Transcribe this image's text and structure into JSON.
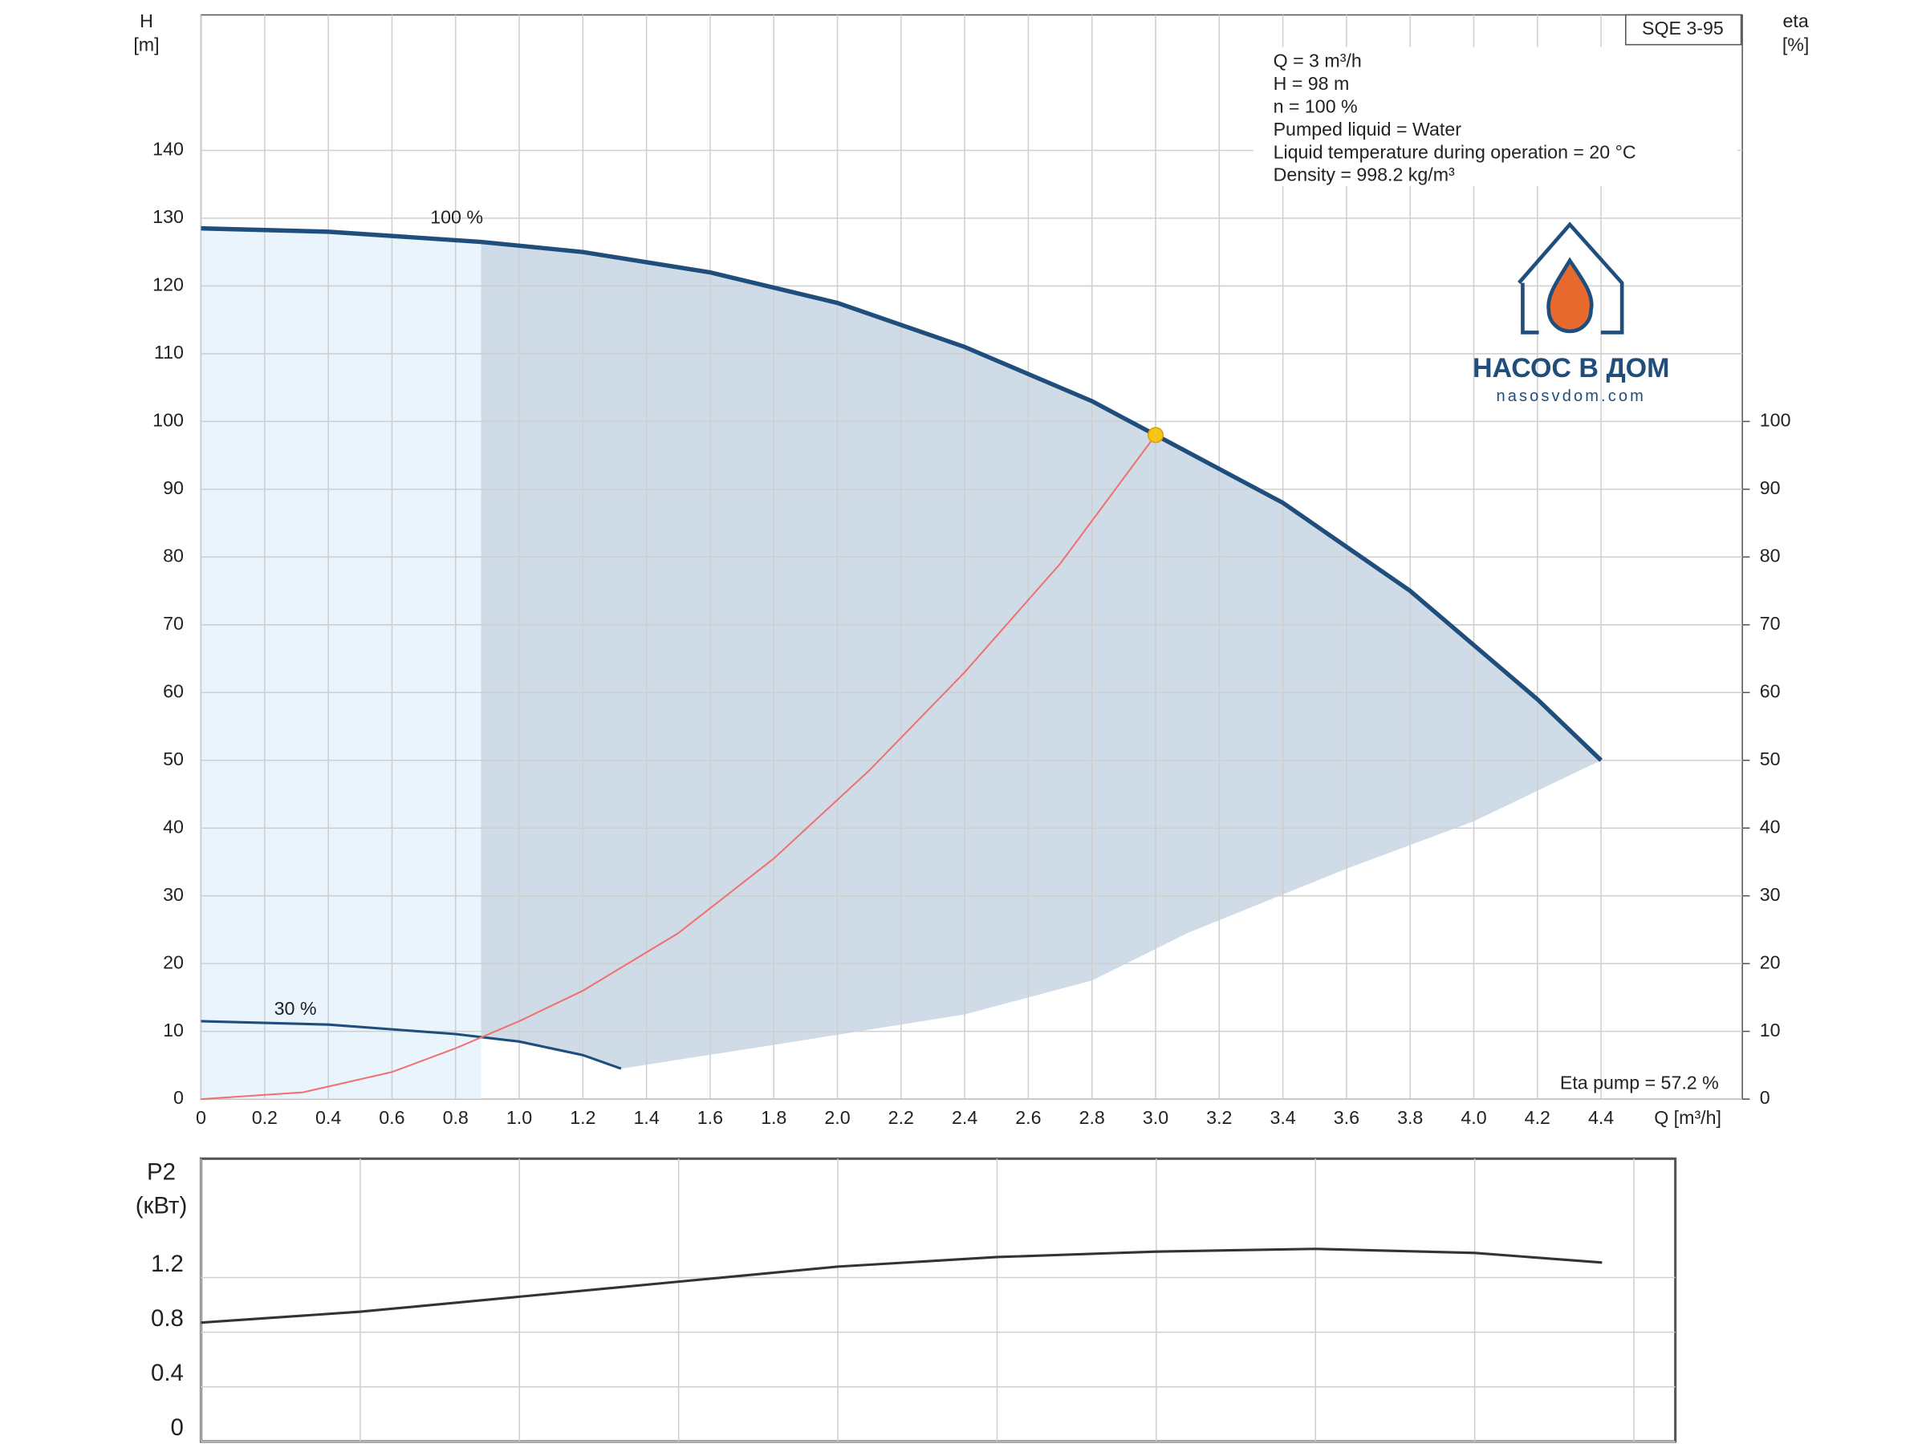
{
  "chart_data": [
    {
      "type": "line",
      "model": "SQE 3-95",
      "info": [
        "Q = 3 m³/h",
        "H = 98 m",
        "n = 100 %",
        "Pumped liquid = Water",
        "Liquid temperature during operation = 20 °C",
        "Density = 998.2 kg/m³"
      ],
      "ylabel": [
        "H",
        "[m]"
      ],
      "y2label": [
        "eta",
        "[%]"
      ],
      "xlabel": "Q [m³/h]",
      "annotation": "Eta pump = 57.2 %",
      "xlim": [
        0,
        4.844
      ],
      "ylim": [
        0,
        160
      ],
      "y2lim": [
        0,
        160
      ],
      "xticks": [
        0,
        0.2,
        0.4,
        0.6,
        0.8,
        {
          "value": 1,
          "label": "1.0"
        },
        1.2,
        1.4,
        1.6,
        1.8,
        {
          "value": 2,
          "label": "2.0"
        },
        2.2,
        2.4,
        2.6,
        2.8,
        {
          "value": 3,
          "label": "3.0"
        },
        3.2,
        3.4,
        3.6,
        3.8,
        {
          "value": 4,
          "label": "4.0"
        },
        4.2,
        4.4
      ],
      "yticks": [
        0,
        10,
        20,
        30,
        40,
        50,
        60,
        70,
        80,
        90,
        100,
        110,
        120,
        130,
        140
      ],
      "y2ticks": [
        0,
        10,
        20,
        30,
        40,
        50,
        60,
        70,
        80,
        90,
        100
      ],
      "grid": true,
      "series": [
        {
          "name": "100 %",
          "color": "#1f4e7c",
          "x": [
            0,
            0.4,
            0.88,
            1.2,
            1.6,
            2.0,
            2.4,
            2.8,
            3.0,
            3.4,
            3.8,
            4.2,
            4.4
          ],
          "values": [
            128.5,
            128,
            126.5,
            125,
            122,
            117.5,
            111,
            103,
            98,
            88,
            75,
            59,
            50
          ]
        },
        {
          "name": "30 %",
          "color": "#1f4e7c",
          "x": [
            0,
            0.4,
            0.8,
            1.0,
            1.2,
            1.32
          ],
          "values": [
            11.5,
            11,
            9.6,
            8.5,
            6.5,
            4.5
          ]
        },
        {
          "color": "#f07070",
          "x": [
            0,
            0.32,
            0.6,
            0.8,
            1.0,
            1.2,
            1.5,
            1.8,
            2.1,
            2.4,
            2.7,
            3.0
          ],
          "values": [
            0,
            1,
            4,
            7.5,
            11.5,
            16,
            24.5,
            35.5,
            48.5,
            63,
            79,
            98
          ]
        }
      ],
      "envelope": {
        "color": "#cfdbe6",
        "x": [
          0.88,
          1.0,
          1.2,
          1.32,
          1.8,
          2.4,
          2.8,
          3.1,
          3.6,
          4.0,
          4.4
        ],
        "values": [
          9.3,
          8.5,
          6.5,
          4.5,
          8,
          12.5,
          17.5,
          24.5,
          34,
          41,
          50
        ]
      },
      "low_region_color": "#eaf4fd",
      "operating_point": {
        "x": 3,
        "y": 98,
        "color": "#f5c518"
      },
      "watermark": {
        "title": "НАСОС В ДОМ",
        "url": "nasosvdom.com"
      }
    },
    {
      "type": "line",
      "ylabel": [
        "P2",
        "(кВт)"
      ],
      "xlim": [
        0,
        4.63
      ],
      "ylim": [
        0,
        2.07
      ],
      "xticks": [
        0,
        0.5,
        1,
        1.5,
        2,
        2.5,
        3,
        3.5,
        4,
        4.5
      ],
      "xtick_labels": false,
      "yticks": [
        0,
        0.4,
        0.8,
        1.2
      ],
      "grid": true,
      "series": [
        {
          "color": "#333333",
          "x": [
            0,
            0.5,
            1,
            1.5,
            2,
            2.5,
            3,
            3.5,
            4,
            4.4
          ],
          "values": [
            0.87,
            0.95,
            1.06,
            1.17,
            1.28,
            1.35,
            1.39,
            1.41,
            1.38,
            1.31
          ]
        }
      ]
    }
  ]
}
